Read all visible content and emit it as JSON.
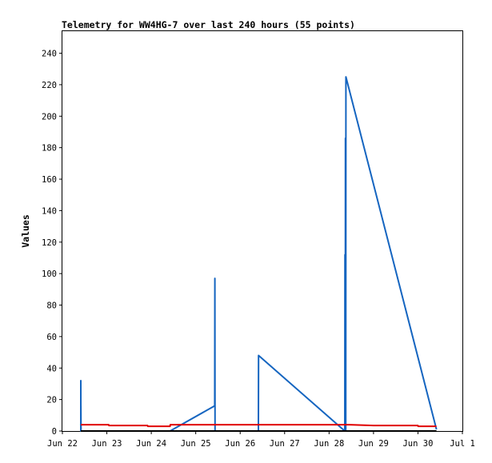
{
  "chart_data": {
    "type": "line",
    "title": "Telemetry for WW4HG-7 over last 240 hours (55 points)",
    "ylabel": "Values",
    "xlabel": "",
    "ylim": [
      0,
      254
    ],
    "xlim": [
      "2024-06-22T00:00",
      "2024-07-01T00:00"
    ],
    "y_ticks": [
      0,
      20,
      40,
      60,
      80,
      100,
      120,
      140,
      160,
      180,
      200,
      220,
      240
    ],
    "x_ticks": [
      {
        "label": "Jun 22",
        "date": "2024-06-22T00:00"
      },
      {
        "label": "Jun 23",
        "date": "2024-06-23T00:00"
      },
      {
        "label": "Jun 24",
        "date": "2024-06-24T00:00"
      },
      {
        "label": "Jun 25",
        "date": "2024-06-25T00:00"
      },
      {
        "label": "Jun 26",
        "date": "2024-06-26T00:00"
      },
      {
        "label": "Jun 27",
        "date": "2024-06-27T00:00"
      },
      {
        "label": "Jun 28",
        "date": "2024-06-28T00:00"
      },
      {
        "label": "Jun 29",
        "date": "2024-06-29T00:00"
      },
      {
        "label": "Jun 30",
        "date": "2024-06-30T00:00"
      },
      {
        "label": "Jul 1",
        "date": "2024-07-01T00:00"
      }
    ],
    "grid": false,
    "legend": "none",
    "series": [
      {
        "color": "#1565c0",
        "points": [
          {
            "x": "2024-06-22T09:55",
            "y": 0
          },
          {
            "x": "2024-06-22T09:55",
            "y": 32
          },
          {
            "x": "2024-06-22T10:00",
            "y": 0
          },
          {
            "x": "2024-06-22T10:00",
            "y": 16
          },
          {
            "x": "2024-06-22T10:05",
            "y": 0
          },
          {
            "x": "2024-06-24T10:10",
            "y": 0
          },
          {
            "x": "2024-06-25T10:15",
            "y": 16
          },
          {
            "x": "2024-06-25T10:20",
            "y": 97
          },
          {
            "x": "2024-06-25T10:25",
            "y": 0
          },
          {
            "x": "2024-06-26T09:50",
            "y": 0
          },
          {
            "x": "2024-06-26T09:55",
            "y": 48
          },
          {
            "x": "2024-06-28T08:30",
            "y": 0
          },
          {
            "x": "2024-06-28T08:35",
            "y": 112
          },
          {
            "x": "2024-06-28T08:40",
            "y": 38
          },
          {
            "x": "2024-06-28T08:45",
            "y": 0
          },
          {
            "x": "2024-06-28T08:50",
            "y": 186
          },
          {
            "x": "2024-06-28T08:55",
            "y": 35
          },
          {
            "x": "2024-06-28T09:00",
            "y": 0
          },
          {
            "x": "2024-06-28T09:05",
            "y": 225
          },
          {
            "x": "2024-06-30T10:00",
            "y": 1
          }
        ]
      },
      {
        "color": "#e00000",
        "points": [
          {
            "x": "2024-06-22T09:55",
            "y": 4
          },
          {
            "x": "2024-06-23T01:00",
            "y": 4
          },
          {
            "x": "2024-06-23T01:05",
            "y": 3.5
          },
          {
            "x": "2024-06-23T22:00",
            "y": 3.5
          },
          {
            "x": "2024-06-23T22:05",
            "y": 3
          },
          {
            "x": "2024-06-24T10:10",
            "y": 3
          },
          {
            "x": "2024-06-24T10:15",
            "y": 4
          },
          {
            "x": "2024-06-28T11:00",
            "y": 4
          },
          {
            "x": "2024-06-29T00:00",
            "y": 3.5
          },
          {
            "x": "2024-06-30T00:00",
            "y": 3.5
          },
          {
            "x": "2024-06-30T00:05",
            "y": 3
          },
          {
            "x": "2024-06-30T10:00",
            "y": 3
          }
        ]
      },
      {
        "color": "#000000",
        "points": [
          {
            "x": "2024-06-22T09:55",
            "y": 0
          },
          {
            "x": "2024-06-30T10:00",
            "y": 0
          }
        ]
      }
    ]
  }
}
